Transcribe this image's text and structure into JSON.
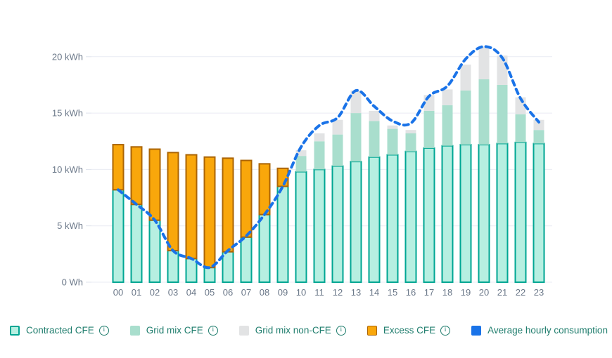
{
  "chart_data": {
    "type": "bar",
    "subtype": "stacked-bars-with-line-overlay",
    "unit": "kWh",
    "categories": [
      "00",
      "01",
      "02",
      "03",
      "04",
      "05",
      "06",
      "07",
      "08",
      "09",
      "10",
      "11",
      "12",
      "13",
      "14",
      "15",
      "16",
      "17",
      "18",
      "19",
      "20",
      "21",
      "22",
      "23"
    ],
    "series": [
      {
        "name": "Contracted CFE",
        "render": "bar",
        "stack": true,
        "values": [
          8.2,
          6.9,
          5.5,
          2.8,
          2.1,
          1.3,
          2.7,
          4.0,
          6.0,
          8.5,
          9.8,
          10.0,
          10.3,
          10.7,
          11.1,
          11.3,
          11.6,
          11.9,
          12.1,
          12.2,
          12.2,
          12.3,
          12.4,
          12.3
        ]
      },
      {
        "name": "Grid mix CFE",
        "render": "bar",
        "stack": true,
        "values": [
          0,
          0,
          0,
          0,
          0,
          0,
          0,
          0,
          0,
          0,
          1.4,
          2.5,
          2.8,
          4.3,
          3.2,
          2.3,
          1.6,
          3.3,
          3.6,
          4.8,
          5.8,
          5.2,
          2.5,
          1.2
        ]
      },
      {
        "name": "Grid mix non-CFE",
        "render": "bar",
        "stack": true,
        "values": [
          0,
          0,
          0,
          0,
          0,
          0,
          0,
          0,
          0,
          0,
          0.5,
          0.7,
          1.3,
          2.0,
          0.9,
          0.3,
          0.3,
          1.4,
          1.4,
          2.3,
          2.9,
          2.6,
          1.5,
          0.9
        ]
      },
      {
        "name": "Excess CFE",
        "render": "bar",
        "stack": true,
        "values": [
          4.0,
          5.1,
          6.3,
          8.7,
          9.2,
          9.8,
          8.3,
          6.8,
          4.5,
          1.6,
          0,
          0,
          0,
          0,
          0,
          0,
          0,
          0,
          0,
          0,
          0,
          0,
          0,
          0
        ]
      },
      {
        "name": "Average hourly consumption",
        "render": "line",
        "style": "dashed",
        "values": [
          8.2,
          6.9,
          5.5,
          2.8,
          2.1,
          1.3,
          2.8,
          4.1,
          6.0,
          8.5,
          12.0,
          13.9,
          14.6,
          17.0,
          15.6,
          14.3,
          14.1,
          16.5,
          17.4,
          19.8,
          20.9,
          19.9,
          16.3,
          14.2
        ]
      }
    ],
    "y_ticks": [
      {
        "value": 0,
        "label": "0 Wh"
      },
      {
        "value": 5,
        "label": "5 kWh"
      },
      {
        "value": 10,
        "label": "10 kWh"
      },
      {
        "value": 15,
        "label": "15 kWh"
      },
      {
        "value": 20,
        "label": "20 kWh"
      }
    ],
    "ylim": [
      0,
      22
    ],
    "xlabel": "",
    "ylabel": "",
    "title": "",
    "grid": true,
    "legend_position": "bottom"
  },
  "legend": {
    "items": [
      {
        "label": "Contracted CFE",
        "info_icon": "i"
      },
      {
        "label": "Grid mix CFE",
        "info_icon": "i"
      },
      {
        "label": "Grid mix non-CFE",
        "info_icon": "i"
      },
      {
        "label": "Excess CFE",
        "info_icon": "i"
      },
      {
        "label": "Average hourly consumption",
        "info_icon": "i"
      }
    ]
  },
  "colors": {
    "contracted_fill": "#b6efe1",
    "contracted_border": "#00a693",
    "grid_mix_cfe": "#a9decd",
    "grid_mix_non_cfe": "#e2e3e4",
    "excess_fill": "#f9a70b",
    "excess_border": "#ab6403",
    "avg_line": "#1a73e8",
    "axis_text": "#6b7889",
    "legend_text": "#1f7d6d",
    "gridline": "#e9ebf3",
    "tick": "#dfe3ec"
  }
}
